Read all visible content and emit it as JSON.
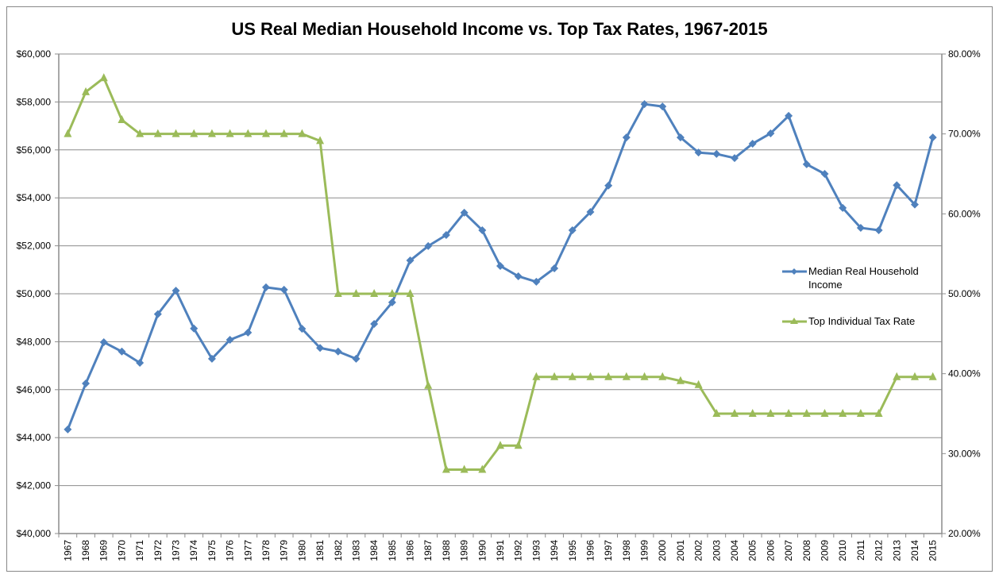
{
  "chart_data": {
    "type": "line",
    "title": "US Real Median Household Income vs. Top Tax Rates, 1967-2015",
    "xlabel": "",
    "ylabel_left": "",
    "ylabel_right": "",
    "categories": [
      "1967",
      "1968",
      "1969",
      "1970",
      "1971",
      "1972",
      "1973",
      "1974",
      "1975",
      "1976",
      "1977",
      "1978",
      "1979",
      "1980",
      "1981",
      "1982",
      "1983",
      "1984",
      "1985",
      "1986",
      "1987",
      "1988",
      "1989",
      "1990",
      "1991",
      "1992",
      "1993",
      "1994",
      "1995",
      "1996",
      "1997",
      "1998",
      "1999",
      "2000",
      "2001",
      "2002",
      "2003",
      "2004",
      "2005",
      "2006",
      "2007",
      "2008",
      "2009",
      "2010",
      "2011",
      "2012",
      "2013",
      "2014",
      "2015"
    ],
    "y_left": {
      "min": 40000,
      "max": 60000,
      "step": 2000,
      "tick_labels": [
        "$40,000",
        "$42,000",
        "$44,000",
        "$46,000",
        "$48,000",
        "$50,000",
        "$52,000",
        "$54,000",
        "$56,000",
        "$58,000",
        "$60,000"
      ]
    },
    "y_right": {
      "min": 20,
      "max": 80,
      "step": 10,
      "tick_labels": [
        "20.00%",
        "30.00%",
        "40.00%",
        "50.00%",
        "60.00%",
        "70.00%",
        "80.00%"
      ]
    },
    "grid": true,
    "legend_position": "right",
    "series": [
      {
        "name": "Median Real Household Income",
        "legend_lines": [
          "Median Real Household",
          "Income"
        ],
        "axis": "left",
        "color": "#4F81BD",
        "marker": "diamond",
        "values": [
          44340,
          46260,
          47980,
          47590,
          47120,
          49150,
          50130,
          48550,
          47290,
          48080,
          48380,
          50270,
          50170,
          48540,
          47740,
          47590,
          47290,
          48740,
          49640,
          51390,
          51990,
          52450,
          53380,
          52650,
          51160,
          50730,
          50500,
          51060,
          52650,
          53410,
          54510,
          56520,
          57910,
          57810,
          56520,
          55890,
          55830,
          55660,
          56260,
          56690,
          57420,
          55400,
          55000,
          53580,
          52750,
          52650,
          54530,
          53720,
          56520
        ]
      },
      {
        "name": "Top Individual Tax Rate",
        "legend_lines": [
          "Top Individual Tax Rate"
        ],
        "axis": "right",
        "color": "#9BBB59",
        "marker": "triangle",
        "values": [
          70,
          75.25,
          77,
          71.75,
          70,
          70,
          70,
          70,
          70,
          70,
          70,
          70,
          70,
          70,
          69.13,
          50,
          50,
          50,
          50,
          50,
          38.5,
          28,
          28,
          28,
          31,
          31,
          39.6,
          39.6,
          39.6,
          39.6,
          39.6,
          39.6,
          39.6,
          39.6,
          39.1,
          38.6,
          35,
          35,
          35,
          35,
          35,
          35,
          35,
          35,
          35,
          35,
          39.6,
          39.6,
          39.6
        ]
      }
    ]
  }
}
